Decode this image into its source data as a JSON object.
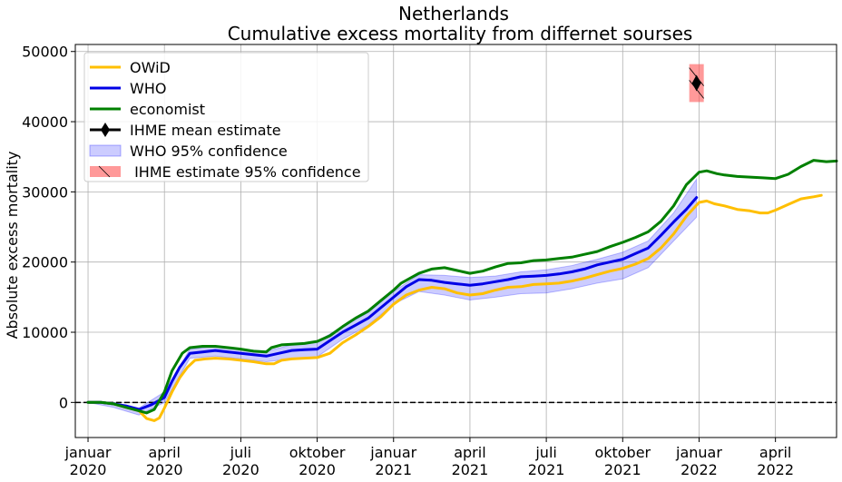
{
  "chart_data": {
    "type": "line",
    "title": "Netherlands",
    "subtitle": "Cumulative excess mortality from differnet sourses",
    "xlabel": "",
    "ylabel": "Absolute excess mortality",
    "ylim": [
      -5000,
      51000
    ],
    "yticks": [
      0,
      10000,
      20000,
      30000,
      40000,
      50000
    ],
    "xlim": [
      -0.5,
      29.4
    ],
    "xticks": [
      {
        "x": 0,
        "line1": "januar",
        "line2": "2020"
      },
      {
        "x": 3,
        "line1": "april",
        "line2": "2020"
      },
      {
        "x": 6,
        "line1": "juli",
        "line2": "2020"
      },
      {
        "x": 9,
        "line1": "oktober",
        "line2": "2020"
      },
      {
        "x": 12,
        "line1": "januar",
        "line2": "2021"
      },
      {
        "x": 15,
        "line1": "april",
        "line2": "2021"
      },
      {
        "x": 18,
        "line1": "juli",
        "line2": "2021"
      },
      {
        "x": 21,
        "line1": "oktober",
        "line2": "2021"
      },
      {
        "x": 24,
        "line1": "januar",
        "line2": "2022"
      },
      {
        "x": 27,
        "line1": "april",
        "line2": "2022"
      }
    ],
    "x_unit_note": "months since januar 2020",
    "grid": true,
    "zero_line": {
      "y": 0,
      "style": "dashed",
      "color": "#000000"
    },
    "legend_position": "top-left",
    "series": [
      {
        "name": "OWiD",
        "color": "#ffbf00",
        "points": [
          [
            0,
            0
          ],
          [
            0.5,
            0
          ],
          [
            1,
            -200
          ],
          [
            1.5,
            -700
          ],
          [
            2,
            -1200
          ],
          [
            2.3,
            -2300
          ],
          [
            2.6,
            -2600
          ],
          [
            2.8,
            -2200
          ],
          [
            3,
            -800
          ],
          [
            3.3,
            1500
          ],
          [
            3.6,
            3500
          ],
          [
            3.9,
            5000
          ],
          [
            4.2,
            6000
          ],
          [
            4.6,
            6200
          ],
          [
            5,
            6300
          ],
          [
            5.5,
            6200
          ],
          [
            6,
            6000
          ],
          [
            6.5,
            5800
          ],
          [
            7,
            5500
          ],
          [
            7.3,
            5500
          ],
          [
            7.6,
            6000
          ],
          [
            8,
            6200
          ],
          [
            8.5,
            6300
          ],
          [
            9,
            6400
          ],
          [
            9.5,
            7000
          ],
          [
            10,
            8500
          ],
          [
            10.5,
            9600
          ],
          [
            11,
            10800
          ],
          [
            11.5,
            12200
          ],
          [
            12,
            14000
          ],
          [
            12.5,
            15300
          ],
          [
            13,
            16000
          ],
          [
            13.5,
            16400
          ],
          [
            14,
            16200
          ],
          [
            14.5,
            15600
          ],
          [
            15,
            15300
          ],
          [
            15.5,
            15500
          ],
          [
            16,
            16000
          ],
          [
            16.5,
            16400
          ],
          [
            17,
            16500
          ],
          [
            17.5,
            16800
          ],
          [
            18,
            16900
          ],
          [
            18.5,
            17000
          ],
          [
            19,
            17300
          ],
          [
            19.5,
            17700
          ],
          [
            20,
            18200
          ],
          [
            20.5,
            18700
          ],
          [
            21,
            19100
          ],
          [
            21.5,
            19700
          ],
          [
            22,
            20500
          ],
          [
            22.5,
            22000
          ],
          [
            23,
            24000
          ],
          [
            23.5,
            26500
          ],
          [
            24,
            28500
          ],
          [
            24.3,
            28700
          ],
          [
            24.6,
            28300
          ],
          [
            25,
            28000
          ],
          [
            25.5,
            27500
          ],
          [
            26,
            27300
          ],
          [
            26.4,
            27000
          ],
          [
            26.7,
            27000
          ],
          [
            27,
            27400
          ],
          [
            27.5,
            28200
          ],
          [
            28,
            29000
          ],
          [
            28.5,
            29300
          ],
          [
            28.8,
            29500
          ]
        ]
      },
      {
        "name": "WHO",
        "color": "#0000e6",
        "points": [
          [
            0,
            0
          ],
          [
            0.5,
            0
          ],
          [
            1,
            -200
          ],
          [
            1.5,
            -500
          ],
          [
            2,
            -1000
          ],
          [
            2.5,
            -300
          ],
          [
            3,
            700
          ],
          [
            3.3,
            3000
          ],
          [
            3.6,
            5000
          ],
          [
            4,
            7000
          ],
          [
            4.5,
            7200
          ],
          [
            5,
            7400
          ],
          [
            5.5,
            7200
          ],
          [
            6,
            7000
          ],
          [
            6.5,
            6800
          ],
          [
            7,
            6600
          ],
          [
            7.5,
            7000
          ],
          [
            8,
            7400
          ],
          [
            8.5,
            7500
          ],
          [
            9,
            7600
          ],
          [
            9.5,
            8800
          ],
          [
            10,
            10000
          ],
          [
            10.5,
            11000
          ],
          [
            11,
            12000
          ],
          [
            11.5,
            13500
          ],
          [
            12,
            15000
          ],
          [
            12.5,
            16500
          ],
          [
            13,
            17500
          ],
          [
            13.5,
            17400
          ],
          [
            14,
            17100
          ],
          [
            14.5,
            16900
          ],
          [
            15,
            16700
          ],
          [
            15.5,
            16900
          ],
          [
            16,
            17200
          ],
          [
            16.5,
            17500
          ],
          [
            17,
            17900
          ],
          [
            17.5,
            18000
          ],
          [
            18,
            18100
          ],
          [
            18.5,
            18300
          ],
          [
            19,
            18600
          ],
          [
            19.5,
            19000
          ],
          [
            20,
            19600
          ],
          [
            20.5,
            20000
          ],
          [
            21,
            20400
          ],
          [
            21.5,
            21200
          ],
          [
            22,
            22000
          ],
          [
            22.5,
            23800
          ],
          [
            23,
            25700
          ],
          [
            23.5,
            27500
          ],
          [
            23.9,
            29200
          ]
        ]
      },
      {
        "name": "economist",
        "color": "#008000",
        "points": [
          [
            0,
            0
          ],
          [
            0.5,
            0
          ],
          [
            1,
            -200
          ],
          [
            1.5,
            -700
          ],
          [
            2,
            -1200
          ],
          [
            2.3,
            -1500
          ],
          [
            2.6,
            -1000
          ],
          [
            3,
            1500
          ],
          [
            3.3,
            4500
          ],
          [
            3.7,
            7000
          ],
          [
            4,
            7800
          ],
          [
            4.5,
            8000
          ],
          [
            5,
            8000
          ],
          [
            5.5,
            7800
          ],
          [
            6,
            7600
          ],
          [
            6.5,
            7300
          ],
          [
            7,
            7200
          ],
          [
            7.2,
            7800
          ],
          [
            7.6,
            8200
          ],
          [
            8,
            8300
          ],
          [
            8.5,
            8400
          ],
          [
            9,
            8700
          ],
          [
            9.5,
            9500
          ],
          [
            10,
            10800
          ],
          [
            10.5,
            12000
          ],
          [
            11,
            13000
          ],
          [
            11.5,
            14500
          ],
          [
            12,
            16000
          ],
          [
            12.3,
            17000
          ],
          [
            12.7,
            17800
          ],
          [
            13,
            18400
          ],
          [
            13.5,
            19000
          ],
          [
            14,
            19200
          ],
          [
            14.5,
            18800
          ],
          [
            15,
            18400
          ],
          [
            15.5,
            18700
          ],
          [
            16,
            19300
          ],
          [
            16.5,
            19800
          ],
          [
            17,
            19900
          ],
          [
            17.5,
            20200
          ],
          [
            18,
            20300
          ],
          [
            18.5,
            20500
          ],
          [
            19,
            20700
          ],
          [
            19.5,
            21100
          ],
          [
            20,
            21500
          ],
          [
            20.5,
            22200
          ],
          [
            21,
            22800
          ],
          [
            21.5,
            23500
          ],
          [
            22,
            24300
          ],
          [
            22.5,
            25800
          ],
          [
            23,
            28000
          ],
          [
            23.5,
            31000
          ],
          [
            24,
            32800
          ],
          [
            24.3,
            33000
          ],
          [
            24.7,
            32600
          ],
          [
            25,
            32400
          ],
          [
            25.5,
            32200
          ],
          [
            26,
            32100
          ],
          [
            26.5,
            32000
          ],
          [
            27,
            31900
          ],
          [
            27.5,
            32500
          ],
          [
            28,
            33600
          ],
          [
            28.5,
            34500
          ],
          [
            29,
            34300
          ],
          [
            29.4,
            34400
          ]
        ]
      }
    ],
    "bands": [
      {
        "name": "WHO 95% confidence",
        "color": "#0000ff",
        "opacity": 0.2,
        "upper": [
          [
            0,
            0
          ],
          [
            1,
            0
          ],
          [
            2,
            -800
          ],
          [
            3,
            1500
          ],
          [
            4,
            7600
          ],
          [
            5,
            8000
          ],
          [
            6,
            7600
          ],
          [
            7,
            7300
          ],
          [
            8,
            8200
          ],
          [
            9,
            8700
          ],
          [
            10,
            10800
          ],
          [
            11,
            12800
          ],
          [
            12,
            15800
          ],
          [
            13,
            18200
          ],
          [
            14,
            18100
          ],
          [
            15,
            17800
          ],
          [
            16,
            18000
          ],
          [
            17,
            18600
          ],
          [
            18,
            18900
          ],
          [
            19,
            19500
          ],
          [
            20,
            20400
          ],
          [
            21,
            21400
          ],
          [
            22,
            23000
          ],
          [
            23,
            27000
          ],
          [
            23.9,
            31800
          ]
        ],
        "lower": [
          [
            0,
            0
          ],
          [
            1,
            -700
          ],
          [
            2,
            -1800
          ],
          [
            3,
            0
          ],
          [
            4,
            6300
          ],
          [
            5,
            6600
          ],
          [
            6,
            6200
          ],
          [
            7,
            5800
          ],
          [
            8,
            6200
          ],
          [
            9,
            6500
          ],
          [
            10,
            9000
          ],
          [
            11,
            11000
          ],
          [
            12,
            14000
          ],
          [
            13,
            15800
          ],
          [
            14,
            15300
          ],
          [
            15,
            14600
          ],
          [
            16,
            15000
          ],
          [
            17,
            15500
          ],
          [
            18,
            15600
          ],
          [
            19,
            16200
          ],
          [
            20,
            17000
          ],
          [
            21,
            17600
          ],
          [
            22,
            19200
          ],
          [
            23,
            23000
          ],
          [
            23.9,
            26400
          ]
        ]
      }
    ],
    "point_estimates": [
      {
        "name": "IHME mean estimate",
        "x": 23.9,
        "y": 45500,
        "ci_low": 42800,
        "ci_high": 48200,
        "marker": "diamond",
        "color": "#000000",
        "ci_color": "#ff5555",
        "ci_label": " IHME estimate 95% confidence"
      }
    ]
  }
}
